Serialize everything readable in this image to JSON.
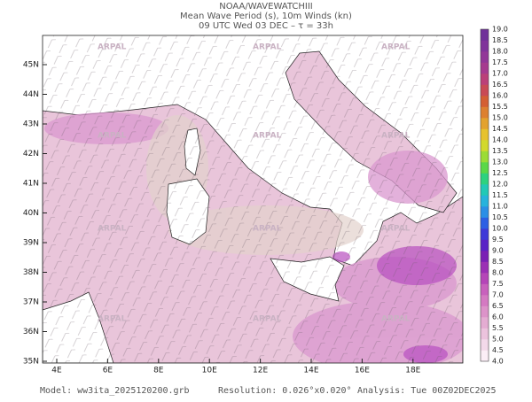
{
  "header": {
    "lines": [
      "NOAA/WAVEWATCHIII",
      "Mean Wave Period (s), 10m Winds (kn)",
      "09 UTC Wed 03 DEC  –  τ = 33h"
    ]
  },
  "map": {
    "lon_labels": [
      "4E",
      "6E",
      "8E",
      "10E",
      "12E",
      "14E",
      "16E",
      "18E"
    ],
    "lat_labels": [
      "35N",
      "36N",
      "37N",
      "38N",
      "39N",
      "40N",
      "41N",
      "42N",
      "43N",
      "44N",
      "45N"
    ],
    "watermark": "ARPAL"
  },
  "colorbar": {
    "labels": [
      "4.0",
      "4.5",
      "5.0",
      "5.5",
      "6.0",
      "6.5",
      "7.0",
      "7.5",
      "8.0",
      "8.5",
      "9.0",
      "9.5",
      "10.0",
      "10.5",
      "11.0",
      "11.5",
      "12.0",
      "12.5",
      "13.0",
      "13.5",
      "14.0",
      "14.5",
      "15.0",
      "15.5",
      "16.0",
      "16.5",
      "17.0",
      "17.5",
      "18.0",
      "18.5",
      "19.0"
    ],
    "colors": [
      "#fbeef6",
      "#f3d9ea",
      "#ecc3dd",
      "#e4acd2",
      "#dc93c9",
      "#d47ac2",
      "#c861bd",
      "#b545b8",
      "#9b2fb5",
      "#7a20b5",
      "#5a22c6",
      "#3e39d8",
      "#2c5fe4",
      "#2b8fe6",
      "#27b3dc",
      "#22c9b6",
      "#2dd27f",
      "#5ad847",
      "#9bdc35",
      "#d2d92c",
      "#e7c22d",
      "#e3a22e",
      "#dd8030",
      "#d45f33",
      "#c94a55",
      "#bb3f79",
      "#a63a8f",
      "#923798",
      "#80349b",
      "#70319a"
    ]
  },
  "footer": {
    "model": "Model: ww3ita_2025120200.grb",
    "resolution": "Resolution: 0.026°x0.020°",
    "analysis": "Analysis: Tue 00Z02DEC2025"
  }
}
